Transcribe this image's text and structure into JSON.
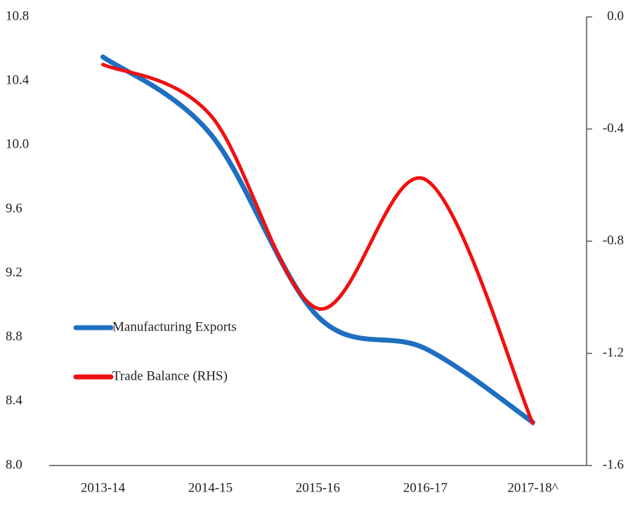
{
  "chart_data": {
    "type": "line",
    "categories": [
      "2013-14",
      "2014-15",
      "2015-16",
      "2016-17",
      "2017-18^"
    ],
    "series": [
      {
        "name": "Manufacturing Exports",
        "color": "#1f6fc1",
        "values": [
          10.55,
          10.07,
          8.93,
          8.73,
          8.27
        ]
      },
      {
        "name": "Trade Balance (RHS)",
        "color": "#f01010",
        "axis": "y2",
        "values": [
          -0.17,
          -0.35,
          -1.04,
          -0.58,
          -1.45
        ]
      }
    ],
    "ylim": [
      8.0,
      10.8
    ],
    "yticks": [
      {
        "value": 8.0,
        "label": "8.0"
      },
      8.4,
      8.8,
      9.2,
      9.6,
      {
        "value": 10.0,
        "label": "10.0"
      },
      10.4,
      10.8
    ],
    "y2lim": [
      -1.6,
      0.0
    ],
    "y2ticks": [
      -1.6,
      -1.2,
      -0.8,
      -0.4,
      {
        "value": 0.0,
        "label": "0.0"
      }
    ],
    "smooth": true,
    "legend": "left"
  }
}
